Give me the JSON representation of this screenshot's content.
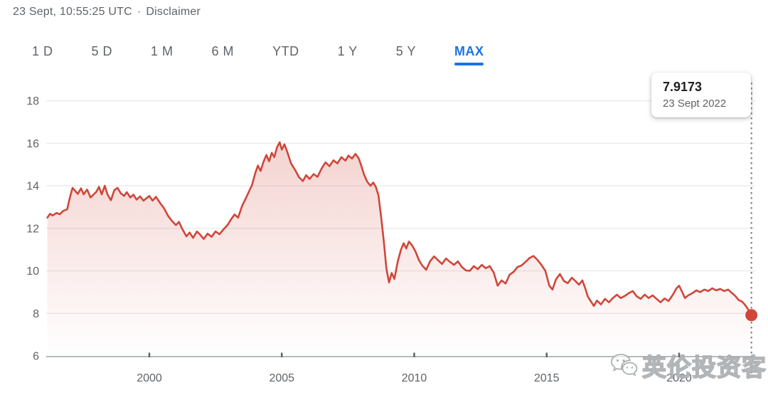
{
  "header": {
    "timestamp": "23 Sept, 10:55:25 UTC",
    "separator": "·",
    "disclaimer": "Disclaimer"
  },
  "tabs": {
    "items": [
      {
        "label": "1 D",
        "selected": false
      },
      {
        "label": "5 D",
        "selected": false
      },
      {
        "label": "1 M",
        "selected": false
      },
      {
        "label": "6 M",
        "selected": false
      },
      {
        "label": "YTD",
        "selected": false
      },
      {
        "label": "1 Y",
        "selected": false
      },
      {
        "label": "5 Y",
        "selected": false
      },
      {
        "label": "MAX",
        "selected": true
      }
    ]
  },
  "tooltip": {
    "value": "7.9173",
    "date": "23 Sept 2022"
  },
  "watermark": {
    "icon": "wechat-icon",
    "text": "英伦投资客"
  },
  "colors": {
    "line": "#d0463a",
    "fill_top": "rgba(208,70,58,0.28)",
    "fill_bottom": "rgba(208,70,58,0)",
    "selected_tab": "#1a73e8",
    "text_gray": "#5f6368",
    "grid": "#ececec",
    "axis": "#b7babd",
    "dotted_line": "#80868b",
    "tooltip_value": "#202124"
  },
  "chart_data": {
    "type": "area",
    "title": "",
    "series_name": "exchange-rate-max",
    "grid": true,
    "legend": false,
    "x_axis": {
      "ticks": [
        2000,
        2005,
        2010,
        2015,
        2020
      ],
      "labels": [
        "2000",
        "2005",
        "2010",
        "2015",
        "2020"
      ],
      "range": [
        1996.1,
        2022.9
      ]
    },
    "y_axis": {
      "ticks": [
        6,
        8,
        10,
        12,
        14,
        16,
        18
      ],
      "labels": [
        "6",
        "8",
        "10",
        "12",
        "14",
        "16",
        "18"
      ],
      "range": [
        6,
        18
      ]
    },
    "last_point": {
      "x": 2022.73,
      "value": 7.9173,
      "date": "23 Sept 2022"
    },
    "points": [
      [
        1996.15,
        12.5
      ],
      [
        1996.25,
        12.68
      ],
      [
        1996.35,
        12.6
      ],
      [
        1996.5,
        12.72
      ],
      [
        1996.62,
        12.66
      ],
      [
        1996.75,
        12.82
      ],
      [
        1996.9,
        12.9
      ],
      [
        1997.0,
        13.45
      ],
      [
        1997.1,
        13.9
      ],
      [
        1997.3,
        13.62
      ],
      [
        1997.42,
        13.88
      ],
      [
        1997.52,
        13.6
      ],
      [
        1997.65,
        13.82
      ],
      [
        1997.78,
        13.45
      ],
      [
        1997.9,
        13.6
      ],
      [
        1998.0,
        13.72
      ],
      [
        1998.1,
        13.95
      ],
      [
        1998.2,
        13.6
      ],
      [
        1998.32,
        14.0
      ],
      [
        1998.42,
        13.6
      ],
      [
        1998.55,
        13.32
      ],
      [
        1998.68,
        13.8
      ],
      [
        1998.8,
        13.9
      ],
      [
        1998.92,
        13.65
      ],
      [
        1999.05,
        13.52
      ],
      [
        1999.15,
        13.7
      ],
      [
        1999.28,
        13.45
      ],
      [
        1999.4,
        13.58
      ],
      [
        1999.52,
        13.35
      ],
      [
        1999.65,
        13.5
      ],
      [
        1999.78,
        13.3
      ],
      [
        1999.9,
        13.42
      ],
      [
        2000.0,
        13.52
      ],
      [
        2000.12,
        13.3
      ],
      [
        2000.25,
        13.48
      ],
      [
        2000.4,
        13.2
      ],
      [
        2000.55,
        12.95
      ],
      [
        2000.7,
        12.6
      ],
      [
        2000.85,
        12.35
      ],
      [
        2001.0,
        12.15
      ],
      [
        2001.12,
        12.3
      ],
      [
        2001.25,
        11.95
      ],
      [
        2001.4,
        11.62
      ],
      [
        2001.52,
        11.8
      ],
      [
        2001.65,
        11.55
      ],
      [
        2001.8,
        11.85
      ],
      [
        2001.92,
        11.7
      ],
      [
        2002.05,
        11.5
      ],
      [
        2002.2,
        11.75
      ],
      [
        2002.35,
        11.6
      ],
      [
        2002.5,
        11.85
      ],
      [
        2002.65,
        11.72
      ],
      [
        2002.8,
        11.95
      ],
      [
        2002.95,
        12.15
      ],
      [
        2003.1,
        12.45
      ],
      [
        2003.22,
        12.65
      ],
      [
        2003.35,
        12.5
      ],
      [
        2003.5,
        13.05
      ],
      [
        2003.62,
        13.35
      ],
      [
        2003.75,
        13.7
      ],
      [
        2003.88,
        14.05
      ],
      [
        2004.0,
        14.6
      ],
      [
        2004.1,
        14.95
      ],
      [
        2004.2,
        14.7
      ],
      [
        2004.3,
        15.1
      ],
      [
        2004.42,
        15.45
      ],
      [
        2004.52,
        15.15
      ],
      [
        2004.62,
        15.55
      ],
      [
        2004.72,
        15.35
      ],
      [
        2004.82,
        15.8
      ],
      [
        2004.92,
        16.05
      ],
      [
        2005.0,
        15.7
      ],
      [
        2005.1,
        15.95
      ],
      [
        2005.22,
        15.55
      ],
      [
        2005.35,
        15.05
      ],
      [
        2005.5,
        14.75
      ],
      [
        2005.65,
        14.4
      ],
      [
        2005.8,
        14.22
      ],
      [
        2005.92,
        14.5
      ],
      [
        2006.05,
        14.32
      ],
      [
        2006.2,
        14.55
      ],
      [
        2006.35,
        14.42
      ],
      [
        2006.5,
        14.8
      ],
      [
        2006.65,
        15.1
      ],
      [
        2006.8,
        14.92
      ],
      [
        2006.95,
        15.2
      ],
      [
        2007.1,
        15.05
      ],
      [
        2007.25,
        15.35
      ],
      [
        2007.4,
        15.18
      ],
      [
        2007.52,
        15.42
      ],
      [
        2007.65,
        15.28
      ],
      [
        2007.78,
        15.5
      ],
      [
        2007.9,
        15.3
      ],
      [
        2008.0,
        14.95
      ],
      [
        2008.1,
        14.55
      ],
      [
        2008.22,
        14.2
      ],
      [
        2008.35,
        14.0
      ],
      [
        2008.45,
        14.15
      ],
      [
        2008.55,
        13.95
      ],
      [
        2008.65,
        13.55
      ],
      [
        2008.75,
        12.55
      ],
      [
        2008.85,
        11.4
      ],
      [
        2008.95,
        10.1
      ],
      [
        2009.05,
        9.45
      ],
      [
        2009.15,
        9.9
      ],
      [
        2009.25,
        9.62
      ],
      [
        2009.38,
        10.45
      ],
      [
        2009.5,
        11.0
      ],
      [
        2009.6,
        11.3
      ],
      [
        2009.7,
        11.05
      ],
      [
        2009.8,
        11.38
      ],
      [
        2009.92,
        11.2
      ],
      [
        2010.05,
        10.9
      ],
      [
        2010.18,
        10.5
      ],
      [
        2010.3,
        10.25
      ],
      [
        2010.45,
        10.05
      ],
      [
        2010.6,
        10.45
      ],
      [
        2010.75,
        10.68
      ],
      [
        2010.9,
        10.5
      ],
      [
        2011.05,
        10.32
      ],
      [
        2011.2,
        10.58
      ],
      [
        2011.35,
        10.42
      ],
      [
        2011.5,
        10.28
      ],
      [
        2011.65,
        10.45
      ],
      [
        2011.8,
        10.18
      ],
      [
        2011.95,
        10.02
      ],
      [
        2012.1,
        10.0
      ],
      [
        2012.25,
        10.22
      ],
      [
        2012.4,
        10.08
      ],
      [
        2012.55,
        10.28
      ],
      [
        2012.7,
        10.12
      ],
      [
        2012.85,
        10.22
      ],
      [
        2013.0,
        9.92
      ],
      [
        2013.15,
        9.3
      ],
      [
        2013.3,
        9.55
      ],
      [
        2013.45,
        9.4
      ],
      [
        2013.6,
        9.82
      ],
      [
        2013.75,
        9.95
      ],
      [
        2013.9,
        10.18
      ],
      [
        2014.05,
        10.25
      ],
      [
        2014.2,
        10.42
      ],
      [
        2014.35,
        10.6
      ],
      [
        2014.5,
        10.7
      ],
      [
        2014.65,
        10.52
      ],
      [
        2014.8,
        10.28
      ],
      [
        2014.95,
        10.0
      ],
      [
        2015.1,
        9.3
      ],
      [
        2015.22,
        9.12
      ],
      [
        2015.35,
        9.6
      ],
      [
        2015.5,
        9.85
      ],
      [
        2015.65,
        9.52
      ],
      [
        2015.8,
        9.42
      ],
      [
        2015.95,
        9.68
      ],
      [
        2016.1,
        9.5
      ],
      [
        2016.22,
        9.35
      ],
      [
        2016.35,
        9.55
      ],
      [
        2016.45,
        9.2
      ],
      [
        2016.55,
        8.8
      ],
      [
        2016.65,
        8.6
      ],
      [
        2016.78,
        8.35
      ],
      [
        2016.9,
        8.6
      ],
      [
        2017.05,
        8.42
      ],
      [
        2017.2,
        8.68
      ],
      [
        2017.35,
        8.52
      ],
      [
        2017.5,
        8.72
      ],
      [
        2017.65,
        8.88
      ],
      [
        2017.8,
        8.72
      ],
      [
        2017.95,
        8.82
      ],
      [
        2018.1,
        8.95
      ],
      [
        2018.25,
        9.05
      ],
      [
        2018.4,
        8.8
      ],
      [
        2018.55,
        8.68
      ],
      [
        2018.7,
        8.88
      ],
      [
        2018.85,
        8.72
      ],
      [
        2019.0,
        8.85
      ],
      [
        2019.15,
        8.68
      ],
      [
        2019.3,
        8.52
      ],
      [
        2019.45,
        8.7
      ],
      [
        2019.6,
        8.58
      ],
      [
        2019.75,
        8.85
      ],
      [
        2019.9,
        9.18
      ],
      [
        2020.0,
        9.3
      ],
      [
        2020.1,
        9.05
      ],
      [
        2020.22,
        8.72
      ],
      [
        2020.35,
        8.85
      ],
      [
        2020.5,
        8.95
      ],
      [
        2020.65,
        9.08
      ],
      [
        2020.8,
        9.0
      ],
      [
        2020.95,
        9.12
      ],
      [
        2021.1,
        9.05
      ],
      [
        2021.25,
        9.18
      ],
      [
        2021.4,
        9.08
      ],
      [
        2021.55,
        9.15
      ],
      [
        2021.7,
        9.05
      ],
      [
        2021.85,
        9.12
      ],
      [
        2022.0,
        8.95
      ],
      [
        2022.12,
        8.82
      ],
      [
        2022.25,
        8.62
      ],
      [
        2022.38,
        8.55
      ],
      [
        2022.5,
        8.38
      ],
      [
        2022.6,
        8.2
      ],
      [
        2022.68,
        8.05
      ],
      [
        2022.73,
        7.9173
      ]
    ]
  }
}
